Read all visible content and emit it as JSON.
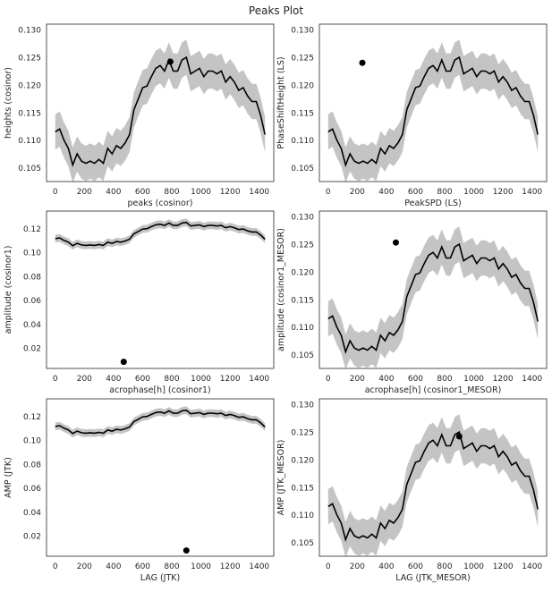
{
  "figure": {
    "suptitle": "Peaks Plot"
  },
  "colors": {
    "line": "#000000",
    "band": "#c4c4c4",
    "point": "#000000",
    "axes": "#262626"
  },
  "chart_data": [
    {
      "type": "line",
      "xlabel": "peaks (cosinor)",
      "ylabel": "heights (cosinor)",
      "xlim": [
        -60,
        1500
      ],
      "ylim": [
        0.1025,
        0.131
      ],
      "xticks": [
        "0",
        "200",
        "400",
        "600",
        "800",
        "1000",
        "1200",
        "1400"
      ],
      "yticks": [
        "0.105",
        "0.110",
        "0.115",
        "0.120",
        "0.125",
        "0.130"
      ],
      "point": {
        "x": 790,
        "y": 0.1242
      },
      "band_halfwidth": 0.0032,
      "series_key": "main"
    },
    {
      "type": "line",
      "xlabel": "PeakSPD (LS)",
      "ylabel": "PhaseShiftHeight (LS)",
      "xlim": [
        -60,
        1500
      ],
      "ylim": [
        0.1025,
        0.131
      ],
      "xticks": [
        "0",
        "200",
        "400",
        "600",
        "800",
        "1000",
        "1200",
        "1400"
      ],
      "yticks": [
        "0.105",
        "0.110",
        "0.115",
        "0.120",
        "0.125",
        "0.130"
      ],
      "point": {
        "x": 235,
        "y": 0.124
      },
      "band_halfwidth": 0.0032,
      "series_key": "main"
    },
    {
      "type": "line",
      "xlabel": "acrophase[h] (cosinor1)",
      "ylabel": "amplitude (cosinor1)",
      "xlim": [
        -60,
        1500
      ],
      "ylim": [
        0.003,
        0.1345
      ],
      "xticks": [
        "0",
        "200",
        "400",
        "600",
        "800",
        "1000",
        "1200",
        "1400"
      ],
      "yticks": [
        "0.02",
        "0.04",
        "0.06",
        "0.08",
        "0.10",
        "0.12"
      ],
      "point": {
        "x": 470,
        "y": 0.0085
      },
      "band_halfwidth": 0.0032,
      "series_key": "main"
    },
    {
      "type": "line",
      "xlabel": "acrophase[h] (cosinor1_MESOR)",
      "ylabel": "amplitude (cosinor1_MESOR)",
      "xlim": [
        -60,
        1500
      ],
      "ylim": [
        0.1025,
        0.131
      ],
      "xticks": [
        "0",
        "200",
        "400",
        "600",
        "800",
        "1000",
        "1200",
        "1400"
      ],
      "yticks": [
        "0.105",
        "0.110",
        "0.115",
        "0.120",
        "0.125",
        "0.130"
      ],
      "point": {
        "x": 465,
        "y": 0.1253
      },
      "band_halfwidth": 0.0032,
      "series_key": "main"
    },
    {
      "type": "line",
      "xlabel": "LAG (JTK)",
      "ylabel": "AMP (JTK)",
      "xlim": [
        -60,
        1500
      ],
      "ylim": [
        0.003,
        0.1345
      ],
      "xticks": [
        "0",
        "200",
        "400",
        "600",
        "800",
        "1000",
        "1200",
        "1400"
      ],
      "yticks": [
        "0.02",
        "0.04",
        "0.06",
        "0.08",
        "0.10",
        "0.12"
      ],
      "point": {
        "x": 900,
        "y": 0.0078
      },
      "band_halfwidth": 0.0032,
      "series_key": "main"
    },
    {
      "type": "line",
      "xlabel": "LAG (JTK_MESOR)",
      "ylabel": "AMP (JTK_MESOR)",
      "xlim": [
        -60,
        1500
      ],
      "ylim": [
        0.1025,
        0.131
      ],
      "xticks": [
        "0",
        "200",
        "400",
        "600",
        "800",
        "1000",
        "1200",
        "1400"
      ],
      "yticks": [
        "0.105",
        "0.110",
        "0.115",
        "0.120",
        "0.125",
        "0.130"
      ],
      "point": {
        "x": 900,
        "y": 0.1242
      },
      "band_halfwidth": 0.0032,
      "series_key": "main"
    }
  ],
  "series": {
    "main": {
      "x": [
        0,
        30,
        60,
        90,
        120,
        150,
        180,
        210,
        240,
        270,
        300,
        330,
        360,
        390,
        420,
        450,
        480,
        510,
        540,
        570,
        600,
        630,
        660,
        690,
        720,
        750,
        780,
        810,
        840,
        870,
        900,
        930,
        960,
        990,
        1020,
        1050,
        1080,
        1110,
        1140,
        1170,
        1200,
        1230,
        1260,
        1290,
        1320,
        1350,
        1380,
        1410,
        1440
      ],
      "y": [
        0.1115,
        0.112,
        0.11,
        0.1085,
        0.1055,
        0.1075,
        0.1062,
        0.1058,
        0.1062,
        0.1058,
        0.1065,
        0.1058,
        0.1085,
        0.1075,
        0.109,
        0.1085,
        0.1095,
        0.111,
        0.1155,
        0.1175,
        0.1195,
        0.1198,
        0.1215,
        0.123,
        0.1235,
        0.1225,
        0.1245,
        0.1225,
        0.1225,
        0.1245,
        0.125,
        0.122,
        0.1225,
        0.123,
        0.1215,
        0.1225,
        0.1225,
        0.122,
        0.1225,
        0.1205,
        0.1215,
        0.1205,
        0.119,
        0.1195,
        0.118,
        0.117,
        0.117,
        0.1145,
        0.111
      ]
    }
  }
}
